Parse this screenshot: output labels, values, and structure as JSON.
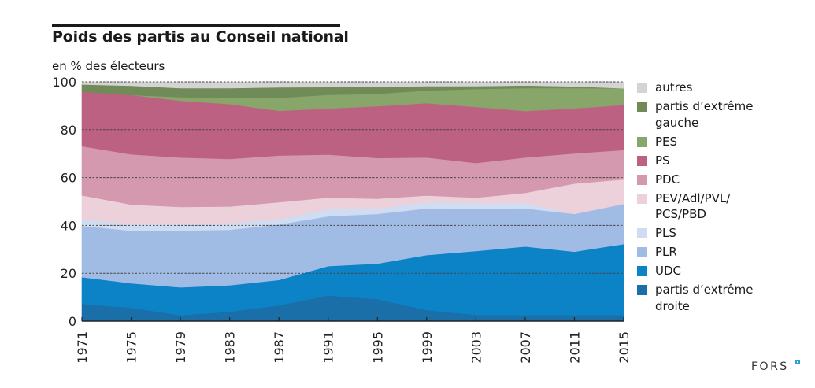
{
  "header": {
    "title": "Poids des partis au Conseil national",
    "subtitle": "en % des électeurs"
  },
  "brand": {
    "logo_text": "FORS"
  },
  "chart_data": {
    "type": "area",
    "stacked": true,
    "title": "Poids des partis au Conseil national",
    "subtitle": "en % des électeurs",
    "xlabel": "",
    "ylabel": "en % des électeurs",
    "ylim": [
      0,
      100
    ],
    "yticks": [
      0,
      20,
      40,
      60,
      80,
      100
    ],
    "grid": "horizontal dotted",
    "legend_position": "right",
    "x": [
      "1971",
      "1975",
      "1979",
      "1983",
      "1987",
      "1991",
      "1995",
      "1999",
      "2003",
      "2007",
      "2011",
      "2015"
    ],
    "series": [
      {
        "name": "partis d’extrême droite",
        "color": "#1a6fa8",
        "values": [
          7.2,
          5.6,
          2.5,
          3.9,
          6.6,
          10.7,
          9.2,
          4.6,
          2.6,
          2.6,
          2.6,
          2.6
        ]
      },
      {
        "name": "UDC",
        "color": "#0c83c7",
        "values": [
          11.2,
          10.2,
          11.6,
          11.1,
          10.6,
          12.3,
          14.8,
          23.0,
          26.7,
          28.6,
          26.4,
          29.6
        ]
      },
      {
        "name": "PLR",
        "color": "#a1bce4",
        "values": [
          21.4,
          22.0,
          23.7,
          23.2,
          23.2,
          20.8,
          20.8,
          19.5,
          17.6,
          15.9,
          15.8,
          16.8
        ]
      },
      {
        "name": "PLS",
        "color": "#cfdcf1",
        "values": [
          2.6,
          2.9,
          2.9,
          2.8,
          2.2,
          2.9,
          2.2,
          2.5,
          2.4,
          2.2,
          0.0,
          0.0
        ]
      },
      {
        "name": "PEV/Adl/PVL/PCS/PBD",
        "color": "#ecd1da",
        "values": [
          10.2,
          8.0,
          7.0,
          6.9,
          7.1,
          4.9,
          4.2,
          2.9,
          2.3,
          4.3,
          12.7,
          10.2
        ]
      },
      {
        "name": "PDC",
        "color": "#d499ae",
        "values": [
          20.5,
          21.0,
          20.7,
          19.9,
          19.5,
          18.0,
          17.0,
          15.9,
          14.5,
          14.8,
          12.6,
          12.3
        ]
      },
      {
        "name": "PS",
        "color": "#bd6182",
        "values": [
          22.8,
          24.8,
          23.7,
          22.9,
          18.7,
          19.2,
          21.6,
          22.7,
          23.4,
          19.4,
          18.8,
          18.8
        ]
      },
      {
        "name": "PES",
        "color": "#88a56a",
        "values": [
          0.0,
          0.0,
          1.5,
          2.6,
          5.4,
          5.8,
          5.2,
          5.3,
          7.5,
          9.6,
          8.5,
          7.0
        ]
      },
      {
        "name": "partis d’extrême gauche",
        "color": "#708a58",
        "values": [
          3.0,
          3.9,
          3.8,
          4.1,
          4.4,
          3.2,
          3.0,
          1.8,
          1.2,
          1.1,
          0.7,
          0.0
        ]
      },
      {
        "name": "autres",
        "color": "#d4d4d4",
        "values": [
          1.1,
          1.6,
          2.6,
          2.6,
          2.3,
          2.2,
          2.0,
          1.8,
          1.8,
          1.5,
          1.9,
          2.7
        ]
      }
    ],
    "legend": [
      {
        "label": "autres",
        "color": "#d4d4d4"
      },
      {
        "label": "partis d’extrême gauche",
        "color": "#708a58"
      },
      {
        "label": "PES",
        "color": "#88a56a"
      },
      {
        "label": "PS",
        "color": "#bd6182"
      },
      {
        "label": "PDC",
        "color": "#d499ae"
      },
      {
        "label": "PEV/Adl/PVL/ PCS/PBD",
        "color": "#ecd1da"
      },
      {
        "label": "PLS",
        "color": "#cfdcf1"
      },
      {
        "label": "PLR",
        "color": "#a1bce4"
      },
      {
        "label": "UDC",
        "color": "#0c83c7"
      },
      {
        "label": "partis d’extrême droite",
        "color": "#1a6fa8"
      }
    ]
  }
}
